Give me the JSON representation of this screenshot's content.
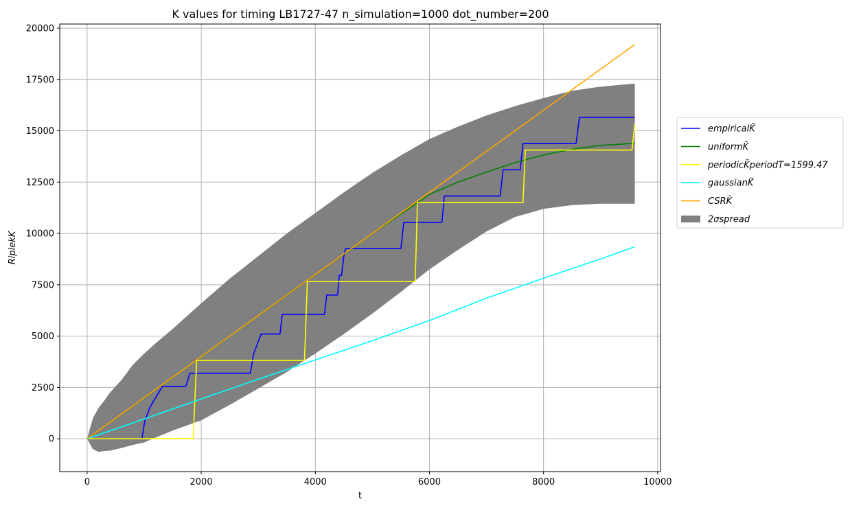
{
  "chart_data": {
    "type": "line",
    "title": "K values for timing LB1727-47 n_simulation=1000 dot_number=200",
    "xlabel": "t",
    "ylabel": "RiplekK",
    "xlim": [
      -480,
      10050
    ],
    "ylim": [
      -1600,
      20200
    ],
    "xticks": [
      0,
      2000,
      4000,
      6000,
      8000,
      10000
    ],
    "yticks": [
      0,
      2500,
      5000,
      7500,
      10000,
      12500,
      15000,
      17500,
      20000
    ],
    "xtick_labels": [
      "0",
      "2000",
      "4000",
      "6000",
      "8000",
      "10000"
    ],
    "ytick_labels": [
      "0",
      "2500",
      "5000",
      "7500",
      "10000",
      "12500",
      "15000",
      "17500",
      "20000"
    ],
    "grid": true,
    "legend_position": "right, outside plot",
    "series": [
      {
        "name": "empiricalK̃",
        "color": "#0000ff",
        "style": "step",
        "x": [
          0,
          960,
          1010,
          1110,
          1320,
          1730,
          1800,
          2860,
          2920,
          3050,
          3380,
          3420,
          4160,
          4200,
          4390,
          4420,
          4460,
          4500,
          4530,
          5500,
          5550,
          6220,
          6260,
          7240,
          7290,
          7590,
          7640,
          8570,
          8630,
          9600
        ],
        "y": [
          0,
          0,
          850,
          1580,
          2550,
          2550,
          3190,
          3190,
          4150,
          5100,
          5100,
          6060,
          6060,
          7000,
          7000,
          7960,
          7960,
          8900,
          9270,
          9270,
          10540,
          10540,
          11820,
          11820,
          13100,
          13100,
          14380,
          14380,
          15660,
          15660
        ]
      },
      {
        "name": "uniformK̃",
        "color": "#008000",
        "style": "line",
        "x": [
          0,
          1000,
          2000,
          3000,
          4000,
          5000,
          6000,
          6500,
          7000,
          7500,
          8000,
          8500,
          9000,
          9600
        ],
        "y": [
          0,
          1990,
          3990,
          5990,
          7990,
          9990,
          11900,
          12500,
          12990,
          13450,
          13820,
          14100,
          14290,
          14390
        ]
      },
      {
        "name": "periodicK̃periodT=1599.47",
        "color": "#ffff00",
        "style": "step",
        "x": [
          0,
          1860,
          1920,
          3810,
          3860,
          5750,
          5790,
          7640,
          7680,
          9550,
          9600
        ],
        "y": [
          0,
          0,
          3820,
          3820,
          7660,
          7660,
          11500,
          11500,
          14060,
          14060,
          15340
        ]
      },
      {
        "name": "gaussianK̃",
        "color": "#00ffff",
        "style": "line",
        "x": [
          0,
          1000,
          2000,
          3000,
          4000,
          5000,
          6000,
          7000,
          8000,
          9000,
          9600
        ],
        "y": [
          0,
          960,
          1940,
          2900,
          3840,
          4780,
          5760,
          6850,
          7820,
          8760,
          9350
        ]
      },
      {
        "name": "CSRK̃",
        "color": "#ffa500",
        "style": "line",
        "x": [
          0,
          9600
        ],
        "y": [
          0,
          19200
        ]
      }
    ],
    "band": {
      "name": "2σspread",
      "color": "#808080",
      "x": [
        0,
        100,
        200,
        300,
        400,
        600,
        800,
        1000,
        1200,
        1500,
        2000,
        2500,
        3000,
        3500,
        4000,
        4500,
        5000,
        5500,
        6000,
        6500,
        7000,
        7500,
        8000,
        8500,
        9000,
        9600
      ],
      "upper": [
        0,
        1000,
        1500,
        1850,
        2250,
        2850,
        3600,
        4150,
        4650,
        5350,
        6600,
        7800,
        8900,
        10000,
        11000,
        12000,
        12950,
        13800,
        14600,
        15200,
        15750,
        16200,
        16600,
        16950,
        17150,
        17300
      ],
      "lower": [
        0,
        -500,
        -640,
        -600,
        -580,
        -450,
        -300,
        -180,
        60,
        400,
        900,
        1650,
        2450,
        3250,
        4150,
        5100,
        6100,
        7150,
        8250,
        9200,
        10100,
        10800,
        11200,
        11380,
        11450,
        11450
      ]
    }
  },
  "colors": {
    "grid": "#b0b0b0",
    "legend_border": "#cccccc"
  }
}
